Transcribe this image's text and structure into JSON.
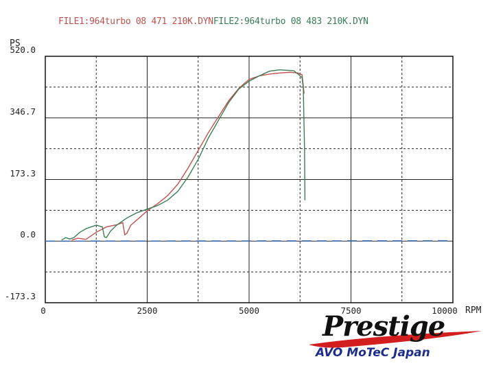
{
  "chart_data": {
    "type": "line",
    "legend": {
      "file1": "FILE1:964turbo 08 471 210K.DYN",
      "file2": "FILE2:964turbo 08 483 210K.DYN"
    },
    "y_unit": "PS",
    "x_unit": "RPM",
    "xlim": [
      0,
      10000
    ],
    "ylim": [
      -173.3,
      520.0
    ],
    "x_ticks": [
      "0",
      "2500",
      "5000",
      "7500",
      "10000"
    ],
    "y_ticks": [
      "520.0",
      "346.7",
      "173.3",
      "0.0",
      "-173.3"
    ],
    "x_tick_values": [
      0,
      2500,
      5000,
      7500,
      10000
    ],
    "y_tick_values": [
      520.0,
      346.7,
      173.3,
      0.0,
      -173.3
    ],
    "grid": true,
    "series": [
      {
        "name": "FILE1:964turbo 08 471 210K.DYN",
        "color": "#c0504d",
        "x": [
          650,
          800,
          1000,
          1250,
          1500,
          1750,
          1900,
          1950,
          2000,
          2100,
          2250,
          2500,
          2750,
          3000,
          3250,
          3500,
          3750,
          4000,
          4250,
          4500,
          4750,
          5000,
          5250,
          5500,
          5750,
          6000,
          6100,
          6200,
          6300,
          6350
        ],
        "y": [
          3,
          8,
          5,
          25,
          40,
          46,
          52,
          18,
          22,
          45,
          60,
          85,
          105,
          128,
          160,
          205,
          255,
          305,
          350,
          395,
          430,
          455,
          465,
          470,
          473,
          475,
          474,
          473,
          468,
          415
        ]
      },
      {
        "name": "FILE2:964turbo 08 483 210K.DYN",
        "color": "#3a7d55",
        "x": [
          400,
          500,
          600,
          700,
          850,
          1000,
          1250,
          1400,
          1450,
          1500,
          1600,
          1750,
          2000,
          2250,
          2500,
          2750,
          3000,
          3250,
          3500,
          3750,
          4000,
          4250,
          4500,
          4750,
          5000,
          5250,
          5500,
          5750,
          6000,
          6100,
          6200,
          6300,
          6330,
          6360,
          6370
        ],
        "y": [
          3,
          10,
          6,
          10,
          25,
          35,
          45,
          40,
          12,
          10,
          28,
          45,
          65,
          80,
          90,
          100,
          115,
          140,
          180,
          230,
          290,
          340,
          390,
          428,
          450,
          465,
          478,
          482,
          480,
          479,
          470,
          460,
          430,
          260,
          115
        ]
      },
      {
        "name": "",
        "color": "#3b6cb4",
        "dashed": true,
        "x": [
          0,
          10000
        ],
        "y": [
          0,
          1
        ]
      }
    ]
  },
  "branding": {
    "brand": "Prestige",
    "subline": "AVO MoTeC Japan"
  }
}
